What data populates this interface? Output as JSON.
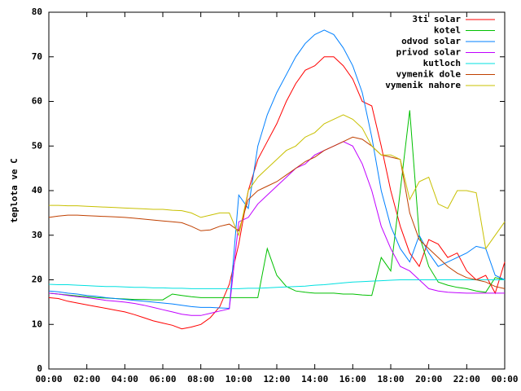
{
  "chart_data": {
    "type": "line",
    "ylabel": "teplota ve C",
    "legend": "top-right",
    "xlim": [
      0,
      24
    ],
    "xticks": [
      {
        "value": 0,
        "label": "00:00"
      },
      {
        "value": 2,
        "label": "02:00"
      },
      {
        "value": 4,
        "label": "04:00"
      },
      {
        "value": 6,
        "label": "06:00"
      },
      {
        "value": 8,
        "label": "08:00"
      },
      {
        "value": 10,
        "label": "10:00"
      },
      {
        "value": 12,
        "label": "12:00"
      },
      {
        "value": 14,
        "label": "14:00"
      },
      {
        "value": 16,
        "label": "16:00"
      },
      {
        "value": 18,
        "label": "18:00"
      },
      {
        "value": 20,
        "label": "20:00"
      },
      {
        "value": 22,
        "label": "22:00"
      },
      {
        "value": 24,
        "label": "00:00"
      }
    ],
    "ylim": [
      0,
      80
    ],
    "yticks": [
      0,
      10,
      20,
      30,
      40,
      50,
      60,
      70,
      80
    ],
    "x": [
      0,
      0.5,
      1,
      1.5,
      2,
      2.5,
      3,
      3.5,
      4,
      4.5,
      5,
      5.5,
      6,
      6.5,
      7,
      7.5,
      8,
      8.5,
      9,
      9.5,
      10,
      10.5,
      11,
      11.5,
      12,
      12.5,
      13,
      13.5,
      14,
      14.5,
      15,
      15.5,
      16,
      16.5,
      17,
      17.5,
      18,
      18.5,
      19,
      19.5,
      20,
      20.5,
      21,
      21.5,
      22,
      22.5,
      23,
      23.5,
      24
    ],
    "series": [
      {
        "name": "3ti solar",
        "color": "#ff0000",
        "values": [
          16,
          15.8,
          15.2,
          14.8,
          14.4,
          14,
          13.6,
          13.2,
          12.8,
          12.2,
          11.5,
          10.8,
          10.3,
          9.8,
          9,
          9.4,
          10,
          11.5,
          14,
          19,
          28,
          40,
          47,
          51,
          55,
          60,
          64,
          67,
          68,
          70,
          70,
          68,
          65,
          60,
          59,
          50,
          40,
          32,
          26,
          23,
          29,
          28,
          25,
          26,
          22,
          20,
          21,
          17,
          24
        ]
      },
      {
        "name": "kotel",
        "color": "#00c000",
        "values": [
          17,
          16.8,
          16.6,
          16.4,
          16.2,
          16,
          15.9,
          15.8,
          15.7,
          15.6,
          15.6,
          15.5,
          15.5,
          16.8,
          16.5,
          16.2,
          16,
          16,
          16,
          16,
          16,
          16,
          16,
          27,
          21,
          18.5,
          17.5,
          17.2,
          17,
          17,
          17,
          16.8,
          16.8,
          16.6,
          16.5,
          25,
          22,
          40,
          58,
          30,
          23,
          19.5,
          18.8,
          18.3,
          18,
          17.5,
          17.2,
          20.5,
          20
        ]
      },
      {
        "name": "odvod solar",
        "color": "#0080ff",
        "values": [
          17.5,
          17.3,
          17,
          16.8,
          16.5,
          16.3,
          16,
          15.8,
          15.6,
          15.4,
          15.2,
          15,
          14.8,
          14.6,
          14.3,
          14,
          13.8,
          13.8,
          13.7,
          13.6,
          39,
          36,
          50,
          57,
          62,
          66,
          70,
          73,
          75,
          76,
          75,
          72,
          68,
          62,
          52,
          40,
          32,
          27,
          24,
          30,
          26,
          23,
          24,
          25,
          26,
          27.5,
          27,
          21,
          20
        ]
      },
      {
        "name": "privod solar",
        "color": "#c000ff",
        "values": [
          17,
          16.8,
          16.5,
          16.2,
          16,
          15.7,
          15.4,
          15.2,
          15,
          14.7,
          14.3,
          13.8,
          13.3,
          12.8,
          12.3,
          12,
          12,
          12.5,
          13,
          13.5,
          33,
          34,
          37,
          39,
          41,
          43,
          45,
          46,
          48,
          49,
          50,
          51,
          50,
          46,
          40,
          32,
          27,
          23,
          22,
          20,
          18,
          17.5,
          17.2,
          17.1,
          17,
          17,
          17,
          17,
          17
        ]
      },
      {
        "name": "kutloch",
        "color": "#00e0e0",
        "values": [
          19,
          18.9,
          18.9,
          18.8,
          18.7,
          18.6,
          18.5,
          18.5,
          18.4,
          18.3,
          18.3,
          18.2,
          18.2,
          18.1,
          18.1,
          18,
          18,
          18,
          18,
          18,
          18,
          18.1,
          18.1,
          18.2,
          18.3,
          18.4,
          18.5,
          18.6,
          18.8,
          18.9,
          19.1,
          19.3,
          19.5,
          19.6,
          19.7,
          19.8,
          19.9,
          20,
          20,
          20,
          20,
          20,
          20,
          20,
          20,
          20,
          20,
          20,
          20
        ]
      },
      {
        "name": "vymenik dole",
        "color": "#c04000",
        "values": [
          34,
          34.3,
          34.5,
          34.5,
          34.4,
          34.3,
          34.2,
          34.1,
          34,
          33.8,
          33.6,
          33.4,
          33.2,
          33,
          32.8,
          32,
          31,
          31.2,
          32,
          32.5,
          31,
          38,
          40,
          41,
          42,
          43.5,
          45,
          46.5,
          47.5,
          49,
          50,
          51,
          52,
          51.5,
          50,
          48,
          47.5,
          47,
          35,
          29,
          27,
          25,
          23,
          21.5,
          20.5,
          20,
          19.5,
          18.5,
          18
        ]
      },
      {
        "name": "vymenik nahore",
        "color": "#c8c000",
        "values": [
          36.7,
          36.7,
          36.6,
          36.6,
          36.5,
          36.4,
          36.3,
          36.2,
          36.1,
          36,
          35.9,
          35.8,
          35.8,
          35.6,
          35.5,
          35,
          34,
          34.5,
          35,
          35,
          30,
          40,
          43,
          45,
          47,
          49,
          50,
          52,
          53,
          55,
          56,
          57,
          56,
          54,
          50,
          48,
          48,
          47,
          38,
          42,
          43,
          37,
          36,
          40,
          40,
          39.5,
          27,
          30,
          33
        ]
      }
    ]
  }
}
